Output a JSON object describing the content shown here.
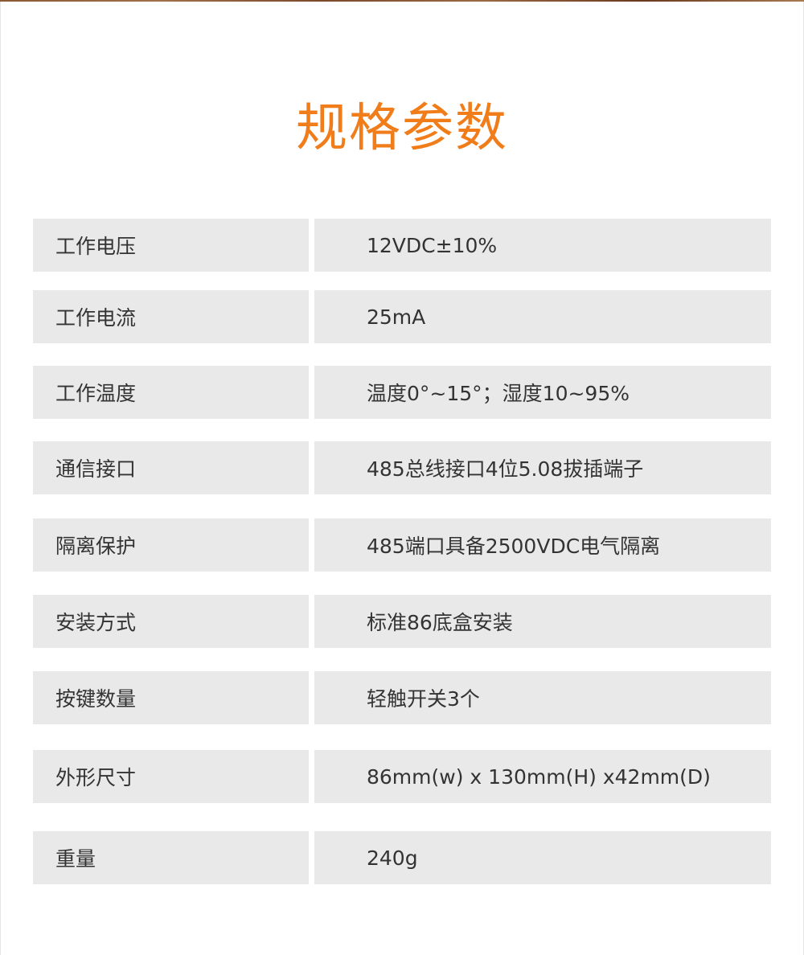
{
  "title": "规格参数",
  "colors": {
    "accent": "#f07d1a",
    "cell_bg": "#e9e9e9",
    "text": "#333333"
  },
  "specs": [
    {
      "label": "工作电压",
      "value": "12VDC±10%"
    },
    {
      "label": "工作电流",
      "value": "25mA"
    },
    {
      "label": "工作温度",
      "value": "温度0°~15°；湿度10~95%"
    },
    {
      "label": "通信接口",
      "value": "485总线接口4位5.08拔插端子"
    },
    {
      "label": "隔离保护",
      "value": "485端口具备2500VDC电气隔离"
    },
    {
      "label": "安装方式",
      "value": "标准86底盒安装"
    },
    {
      "label": "按键数量",
      "value": "轻触开关3个"
    },
    {
      "label": "外形尺寸",
      "value": "86mm(w) x 130mm(H) x42mm(D)"
    },
    {
      "label": "重量",
      "value": "240g"
    }
  ]
}
